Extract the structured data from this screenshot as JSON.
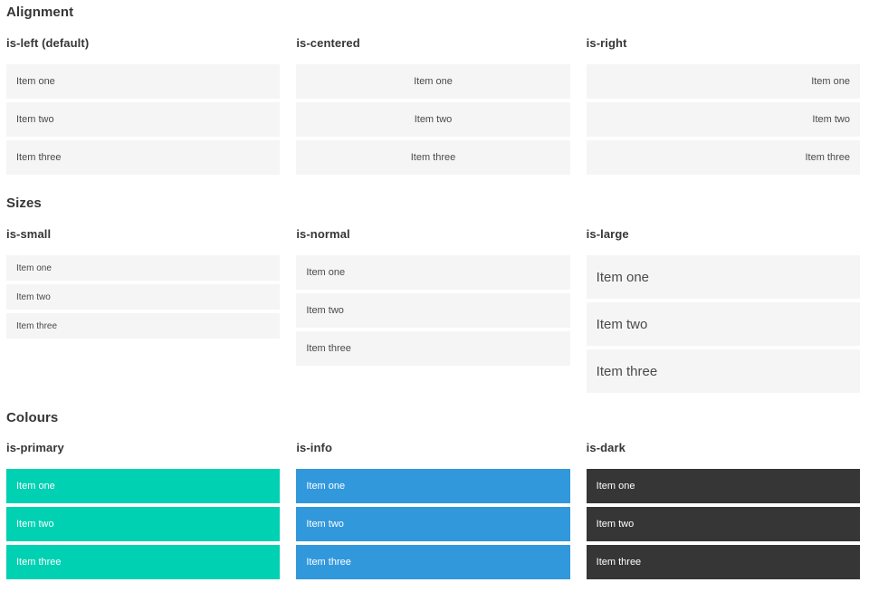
{
  "colors": {
    "primary": "#00d1b2",
    "info": "#3298dc",
    "dark": "#363636",
    "item_bg": "#f5f5f5",
    "item_text": "#4a4a4a",
    "heading_text": "#363636"
  },
  "sections": [
    {
      "title": "Alignment",
      "columns": [
        {
          "heading": "is-left (default)",
          "items": [
            "Item one",
            "Item two",
            "Item three"
          ]
        },
        {
          "heading": "is-centered",
          "items": [
            "Item one",
            "Item two",
            "Item three"
          ]
        },
        {
          "heading": "is-right",
          "items": [
            "Item one",
            "Item two",
            "Item three"
          ]
        }
      ]
    },
    {
      "title": "Sizes",
      "columns": [
        {
          "heading": "is-small",
          "items": [
            "Item one",
            "Item two",
            "Item three"
          ]
        },
        {
          "heading": "is-normal",
          "items": [
            "Item one",
            "Item two",
            "Item three"
          ]
        },
        {
          "heading": "is-large",
          "items": [
            "Item one",
            "Item two",
            "Item three"
          ]
        }
      ]
    },
    {
      "title": "Colours",
      "columns": [
        {
          "heading": "is-primary",
          "items": [
            "Item one",
            "Item two",
            "Item three"
          ]
        },
        {
          "heading": "is-info",
          "items": [
            "Item one",
            "Item two",
            "Item three"
          ]
        },
        {
          "heading": "is-dark",
          "items": [
            "Item one",
            "Item two",
            "Item three"
          ]
        }
      ]
    }
  ]
}
